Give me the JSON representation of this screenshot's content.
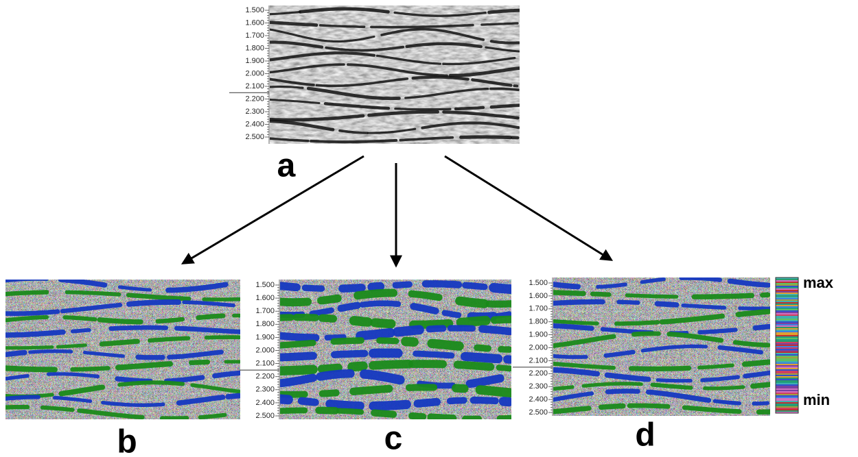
{
  "panels": [
    {
      "label": "a",
      "axis_ticks": [
        "1.500",
        "1.600",
        "1.700",
        "1.800",
        "1.900",
        "2.000",
        "2.100",
        "2.200",
        "2.300",
        "2.400",
        "2.500"
      ]
    },
    {
      "label": "b"
    },
    {
      "label": "c",
      "axis_ticks": [
        "1.500",
        "1.600",
        "1.700",
        "1.800",
        "1.900",
        "2.000",
        "2.100",
        "2.200",
        "2.300",
        "2.400",
        "2.500"
      ]
    },
    {
      "label": "d",
      "axis_ticks": [
        "1.500",
        "1.600",
        "1.700",
        "1.800",
        "1.900",
        "2.000",
        "2.100",
        "2.200",
        "2.300",
        "2.400",
        "2.500"
      ]
    }
  ],
  "colorbar": {
    "max_label": "max",
    "min_label": "min"
  }
}
